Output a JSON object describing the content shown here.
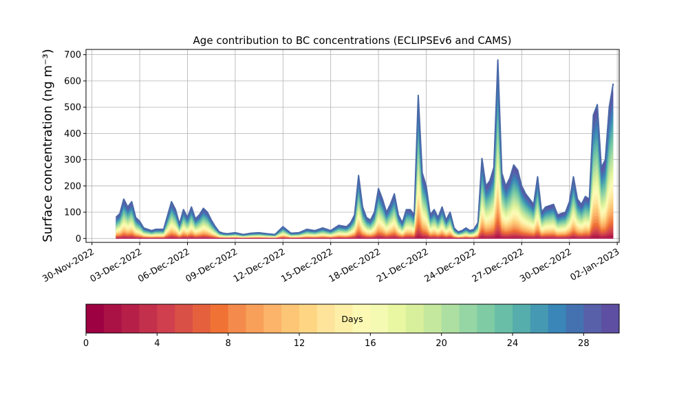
{
  "chart_data": {
    "type": "area",
    "subtype": "stacked-by-age",
    "title": "Age contribution to BC concentrations (ECLIPSEv6 and CAMS)",
    "ylabel": "Surface concentration (ng m⁻³)",
    "xlabel": "",
    "x_range": [
      "2022-11-29T15:00",
      "2023-01-02T03:00"
    ],
    "ylim": [
      -15,
      720
    ],
    "grid": true,
    "x_ticks": [
      "30-Nov-2022",
      "03-Dec-2022",
      "06-Dec-2022",
      "09-Dec-2022",
      "12-Dec-2022",
      "15-Dec-2022",
      "18-Dec-2022",
      "21-Dec-2022",
      "24-Dec-2022",
      "27-Dec-2022",
      "30-Dec-2022",
      "02-Jan-2023"
    ],
    "y_ticks": [
      0,
      100,
      200,
      300,
      400,
      500,
      600,
      700
    ],
    "total_series": {
      "name": "",
      "x": [
        "2022-12-01T12:00",
        "2022-12-01T18:00",
        "2022-12-02T00:00",
        "2022-12-02T06:00",
        "2022-12-02T12:00",
        "2022-12-02T18:00",
        "2022-12-03T00:00",
        "2022-12-03T06:00",
        "2022-12-03T12:00",
        "2022-12-03T18:00",
        "2022-12-04T00:00",
        "2022-12-04T12:00",
        "2022-12-05T00:00",
        "2022-12-05T06:00",
        "2022-12-05T12:00",
        "2022-12-05T18:00",
        "2022-12-06T00:00",
        "2022-12-06T06:00",
        "2022-12-06T12:00",
        "2022-12-06T18:00",
        "2022-12-07T00:00",
        "2022-12-07T06:00",
        "2022-12-07T12:00",
        "2022-12-07T18:00",
        "2022-12-08T00:00",
        "2022-12-08T06:00",
        "2022-12-08T12:00",
        "2022-12-09T00:00",
        "2022-12-09T12:00",
        "2022-12-10T00:00",
        "2022-12-10T12:00",
        "2022-12-11T00:00",
        "2022-12-11T12:00",
        "2022-12-12T00:00",
        "2022-12-12T12:00",
        "2022-12-13T00:00",
        "2022-12-13T12:00",
        "2022-12-14T00:00",
        "2022-12-14T12:00",
        "2022-12-15T00:00",
        "2022-12-15T12:00",
        "2022-12-16T00:00",
        "2022-12-16T06:00",
        "2022-12-16T12:00",
        "2022-12-16T18:00",
        "2022-12-17T00:00",
        "2022-12-17T06:00",
        "2022-12-17T12:00",
        "2022-12-17T18:00",
        "2022-12-18T00:00",
        "2022-12-18T06:00",
        "2022-12-18T12:00",
        "2022-12-18T18:00",
        "2022-12-19T00:00",
        "2022-12-19T06:00",
        "2022-12-19T12:00",
        "2022-12-19T18:00",
        "2022-12-20T00:00",
        "2022-12-20T06:00",
        "2022-12-20T12:00",
        "2022-12-20T18:00",
        "2022-12-21T00:00",
        "2022-12-21T06:00",
        "2022-12-21T12:00",
        "2022-12-21T18:00",
        "2022-12-22T00:00",
        "2022-12-22T06:00",
        "2022-12-22T12:00",
        "2022-12-22T18:00",
        "2022-12-23T00:00",
        "2022-12-23T06:00",
        "2022-12-23T12:00",
        "2022-12-23T18:00",
        "2022-12-24T00:00",
        "2022-12-24T06:00",
        "2022-12-24T12:00",
        "2022-12-24T18:00",
        "2022-12-25T00:00",
        "2022-12-25T06:00",
        "2022-12-25T12:00",
        "2022-12-25T18:00",
        "2022-12-26T00:00",
        "2022-12-26T06:00",
        "2022-12-26T12:00",
        "2022-12-26T18:00",
        "2022-12-27T00:00",
        "2022-12-27T06:00",
        "2022-12-27T12:00",
        "2022-12-27T18:00",
        "2022-12-28T00:00",
        "2022-12-28T06:00",
        "2022-12-28T12:00",
        "2022-12-29T00:00",
        "2022-12-29T06:00",
        "2022-12-29T12:00",
        "2022-12-29T18:00",
        "2022-12-30T00:00",
        "2022-12-30T06:00",
        "2022-12-30T12:00",
        "2022-12-30T18:00",
        "2022-12-31T00:00",
        "2022-12-31T06:00",
        "2022-12-31T12:00",
        "2022-12-31T18:00",
        "2023-01-01T00:00",
        "2023-01-01T06:00",
        "2023-01-01T12:00",
        "2023-01-01T18:00"
      ],
      "values": [
        80,
        95,
        150,
        120,
        140,
        80,
        65,
        40,
        35,
        30,
        35,
        35,
        140,
        110,
        55,
        110,
        80,
        120,
        75,
        90,
        115,
        100,
        70,
        45,
        25,
        20,
        18,
        22,
        15,
        20,
        22,
        18,
        15,
        45,
        20,
        22,
        35,
        30,
        40,
        30,
        50,
        45,
        60,
        90,
        240,
        120,
        80,
        70,
        100,
        190,
        150,
        100,
        130,
        170,
        90,
        60,
        110,
        110,
        90,
        545,
        250,
        200,
        90,
        110,
        80,
        120,
        70,
        100,
        40,
        25,
        30,
        40,
        30,
        35,
        60,
        305,
        200,
        220,
        270,
        680,
        250,
        200,
        230,
        280,
        260,
        200,
        170,
        150,
        130,
        235,
        100,
        120,
        130,
        90,
        95,
        100,
        140,
        235,
        150,
        130,
        160,
        150,
        470,
        510,
        270,
        300,
        500,
        590
      ]
    },
    "age_bins": {
      "label": "Days",
      "range": [
        0,
        30
      ],
      "step": 1,
      "ticks": [
        0,
        4,
        8,
        12,
        16,
        20,
        24,
        28
      ]
    },
    "colormap": [
      "#9e0142",
      "#aa1145",
      "#b62048",
      "#c2304b",
      "#cf3f4e",
      "#d95047",
      "#e5613e",
      "#f07335",
      "#f48b4c",
      "#f8a05a",
      "#fbb469",
      "#fdc676",
      "#fed683",
      "#fee49a",
      "#feefa8",
      "#fcf9b4",
      "#f4fab1",
      "#e9f6a2",
      "#d8ef9c",
      "#c4e89e",
      "#aedfa2",
      "#96d5a4",
      "#7ecba4",
      "#68bea6",
      "#55aeab",
      "#4699b2",
      "#3a86b8",
      "#4472b1",
      "#5760a8",
      "#5e4fa2"
    ],
    "colorbar_placement": "bottom"
  }
}
